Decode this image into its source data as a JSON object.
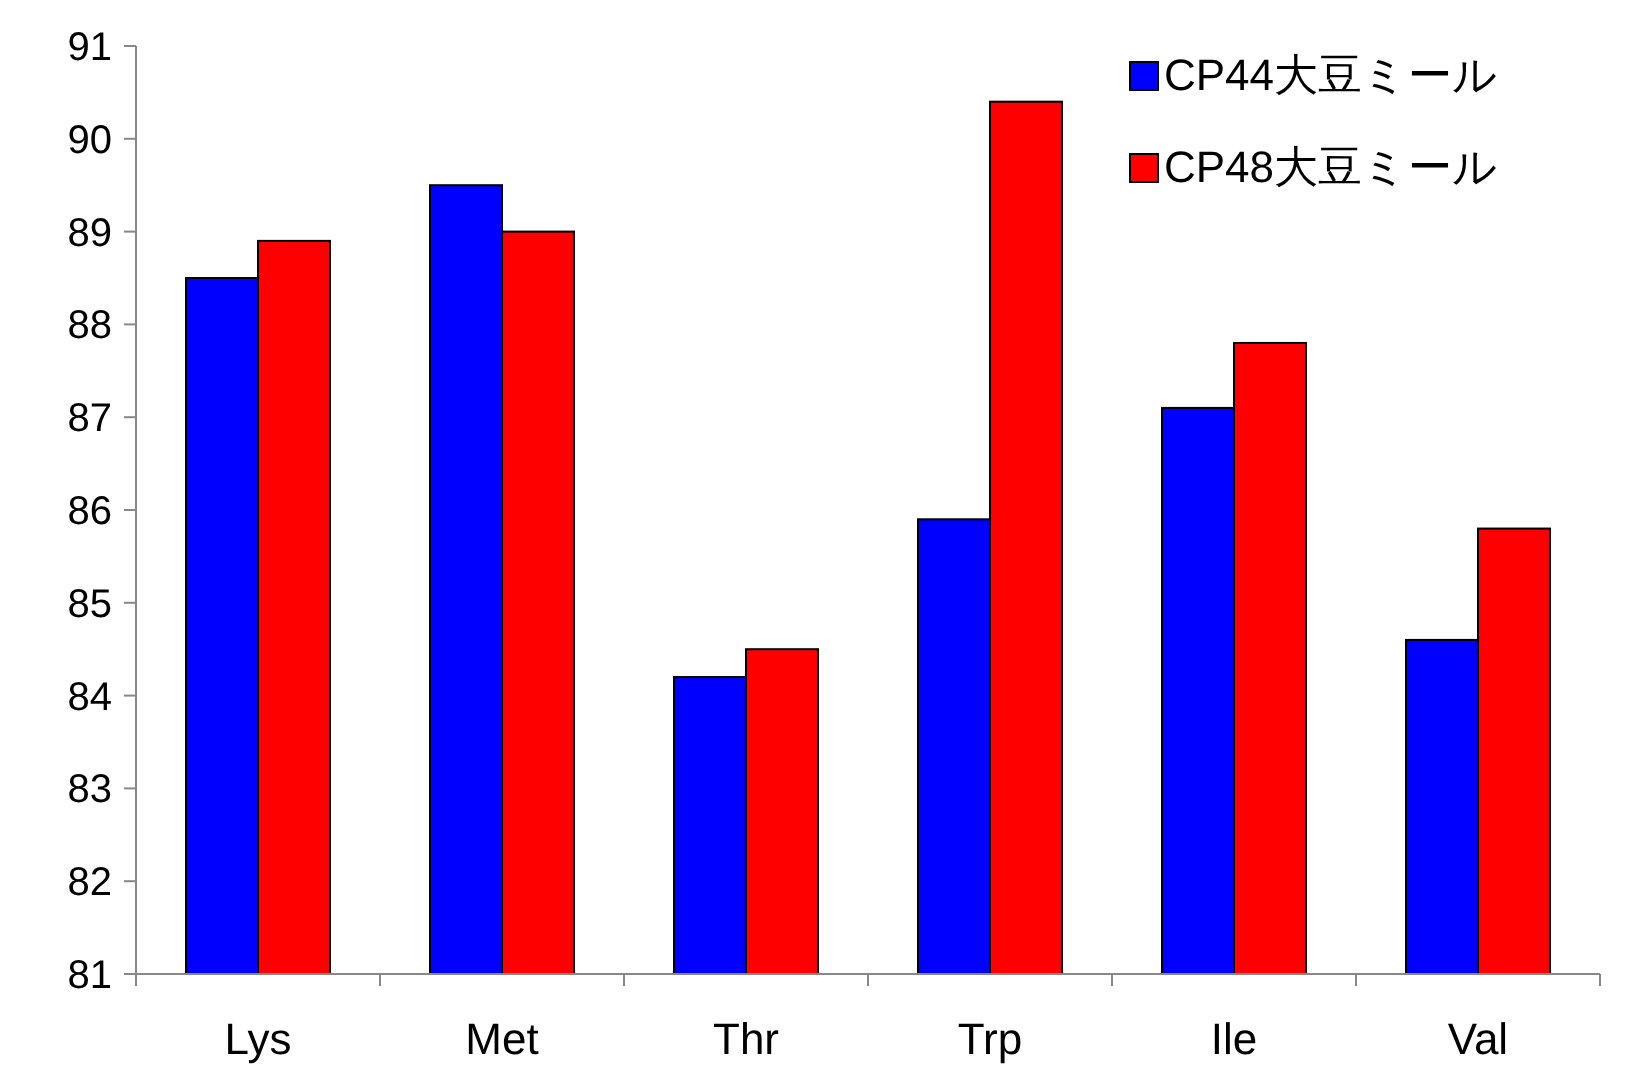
{
  "chart_data": {
    "type": "bar",
    "categories": [
      "Lys",
      "Met",
      "Thr",
      "Trp",
      "Ile",
      "Val"
    ],
    "series": [
      {
        "name": "CP44大豆ミール",
        "color": "#0000ff",
        "values": [
          88.5,
          89.5,
          84.2,
          85.9,
          87.1,
          84.6
        ]
      },
      {
        "name": "CP48大豆ミール",
        "color": "#ff0000",
        "values": [
          88.9,
          89.0,
          84.5,
          90.4,
          87.8,
          85.8
        ]
      }
    ],
    "ylim": [
      81,
      91
    ],
    "yticks": [
      81,
      82,
      83,
      84,
      85,
      86,
      87,
      88,
      89,
      90,
      91
    ],
    "grid": false,
    "legend": "top right"
  }
}
